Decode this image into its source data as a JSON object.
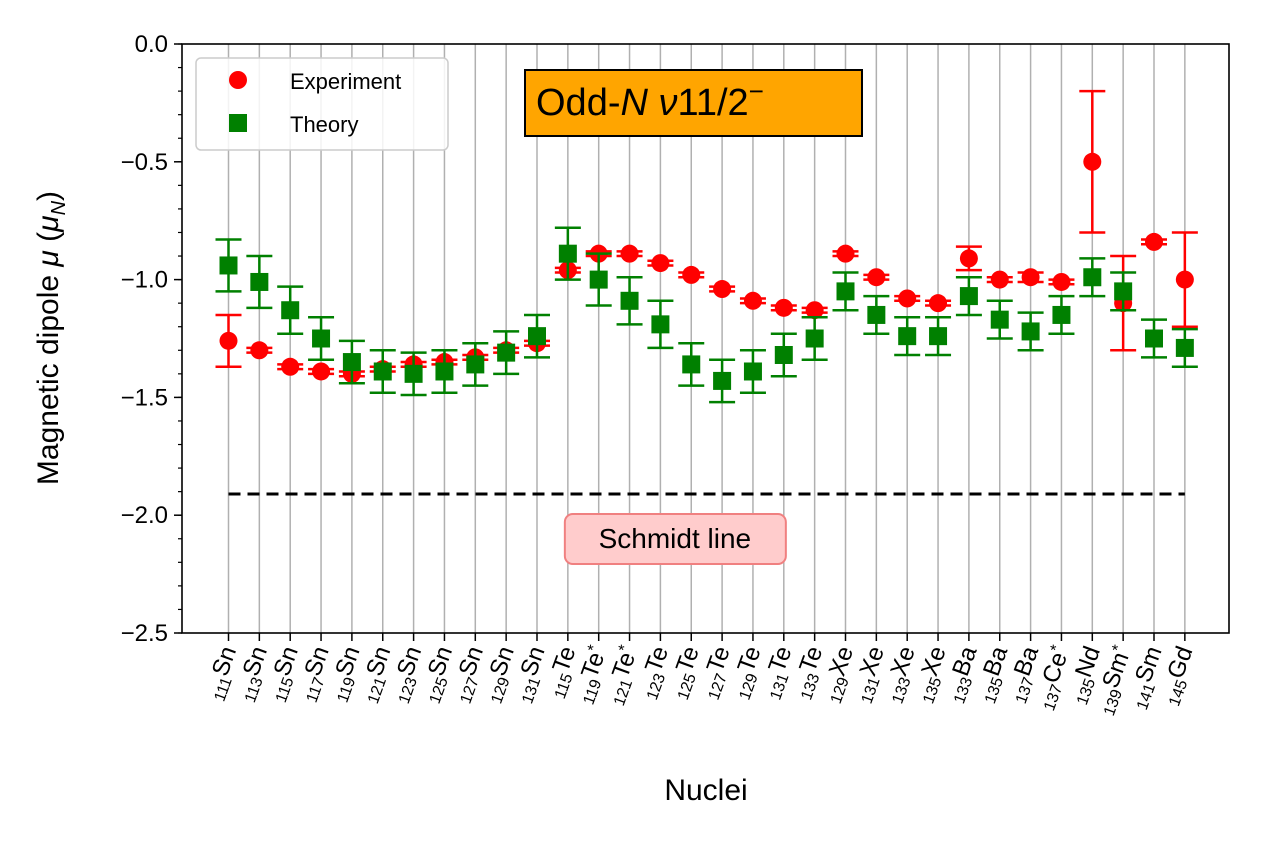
{
  "chart_data": {
    "type": "scatter",
    "title_box": {
      "main": "Odd-",
      "italic": "N",
      "rest_italic": " ν",
      "rest": "11/2",
      "sup": "−",
      "bg": "#ffa500"
    },
    "xlabel": "Nuclei",
    "ylabel_main": "Magnetic dipole ",
    "ylabel_mu": "μ",
    "ylabel_unit_open": " (",
    "ylabel_unit": "μ",
    "ylabel_unit_sub": "N",
    "ylabel_unit_close": ")",
    "ylim": [
      -2.5,
      0.0
    ],
    "yticks": [
      "0.0",
      "−0.5",
      "−1.0",
      "−1.5",
      "−2.0",
      "−2.5"
    ],
    "ytick_values": [
      0.0,
      -0.5,
      -1.0,
      -1.5,
      -2.0,
      -2.5
    ],
    "grid": "vertical",
    "legend_position": "top-left",
    "categories": [
      {
        "mass": "111",
        "sym": "Sn",
        "star": ""
      },
      {
        "mass": "113",
        "sym": "Sn",
        "star": ""
      },
      {
        "mass": "115",
        "sym": "Sn",
        "star": ""
      },
      {
        "mass": "117",
        "sym": "Sn",
        "star": ""
      },
      {
        "mass": "119",
        "sym": "Sn",
        "star": ""
      },
      {
        "mass": "121",
        "sym": "Sn",
        "star": ""
      },
      {
        "mass": "123",
        "sym": "Sn",
        "star": ""
      },
      {
        "mass": "125",
        "sym": "Sn",
        "star": ""
      },
      {
        "mass": "127",
        "sym": "Sn",
        "star": ""
      },
      {
        "mass": "129",
        "sym": "Sn",
        "star": ""
      },
      {
        "mass": "131",
        "sym": "Sn",
        "star": ""
      },
      {
        "mass": "115",
        "sym": "Te",
        "star": ""
      },
      {
        "mass": "119",
        "sym": "Te",
        "star": "*"
      },
      {
        "mass": "121",
        "sym": "Te",
        "star": "*"
      },
      {
        "mass": "123",
        "sym": "Te",
        "star": ""
      },
      {
        "mass": "125",
        "sym": "Te",
        "star": ""
      },
      {
        "mass": "127",
        "sym": "Te",
        "star": ""
      },
      {
        "mass": "129",
        "sym": "Te",
        "star": ""
      },
      {
        "mass": "131",
        "sym": "Te",
        "star": ""
      },
      {
        "mass": "133",
        "sym": "Te",
        "star": ""
      },
      {
        "mass": "129",
        "sym": "Xe",
        "star": ""
      },
      {
        "mass": "131",
        "sym": "Xe",
        "star": ""
      },
      {
        "mass": "133",
        "sym": "Xe",
        "star": ""
      },
      {
        "mass": "135",
        "sym": "Xe",
        "star": ""
      },
      {
        "mass": "133",
        "sym": "Ba",
        "star": ""
      },
      {
        "mass": "135",
        "sym": "Ba",
        "star": ""
      },
      {
        "mass": "137",
        "sym": "Ba",
        "star": ""
      },
      {
        "mass": "137",
        "sym": "Ce",
        "star": "*"
      },
      {
        "mass": "135",
        "sym": "Nd",
        "star": ""
      },
      {
        "mass": "139",
        "sym": "Sm",
        "star": "*"
      },
      {
        "mass": "141",
        "sym": "Sm",
        "star": ""
      },
      {
        "mass": "145",
        "sym": "Gd",
        "star": ""
      }
    ],
    "series": [
      {
        "name": "Experiment",
        "color": "#ff0000",
        "marker": "circle",
        "values": [
          -1.26,
          -1.3,
          -1.37,
          -1.39,
          -1.4,
          -1.38,
          -1.36,
          -1.35,
          -1.33,
          -1.3,
          -1.27,
          -0.96,
          -0.89,
          -0.89,
          -0.93,
          -0.98,
          -1.04,
          -1.09,
          -1.12,
          -1.13,
          -0.89,
          -0.99,
          -1.08,
          -1.1,
          -0.91,
          -1.0,
          -0.99,
          -1.01,
          -0.5,
          -1.1,
          -0.84,
          -1.0
        ],
        "errors": [
          0.11,
          0.01,
          0.01,
          0.01,
          0.01,
          0.01,
          0.01,
          0.01,
          0.01,
          0.01,
          0.01,
          0.01,
          0.01,
          0.01,
          0.01,
          0.01,
          0.01,
          0.01,
          0.01,
          0.01,
          0.01,
          0.01,
          0.01,
          0.01,
          0.05,
          0.01,
          0.02,
          0.01,
          0.3,
          0.2,
          0.01,
          0.2
        ]
      },
      {
        "name": "Theory",
        "color": "#008000",
        "marker": "square",
        "values": [
          -0.94,
          -1.01,
          -1.13,
          -1.25,
          -1.35,
          -1.39,
          -1.4,
          -1.39,
          -1.36,
          -1.31,
          -1.24,
          -0.89,
          -1.0,
          -1.09,
          -1.19,
          -1.36,
          -1.43,
          -1.39,
          -1.32,
          -1.25,
          -1.05,
          -1.15,
          -1.24,
          -1.24,
          -1.07,
          -1.17,
          -1.22,
          -1.15,
          -0.99,
          -1.05,
          -1.25,
          -1.29
        ],
        "errors": [
          0.11,
          0.11,
          0.1,
          0.09,
          0.09,
          0.09,
          0.09,
          0.09,
          0.09,
          0.09,
          0.09,
          0.11,
          0.11,
          0.1,
          0.1,
          0.09,
          0.09,
          0.09,
          0.09,
          0.09,
          0.08,
          0.08,
          0.08,
          0.08,
          0.08,
          0.08,
          0.08,
          0.08,
          0.08,
          0.08,
          0.08,
          0.08
        ]
      }
    ],
    "schmidt_line": {
      "value": -1.91,
      "label": "Schmidt line",
      "label_bg": "#ffcccc",
      "label_border": "#f08080"
    }
  }
}
